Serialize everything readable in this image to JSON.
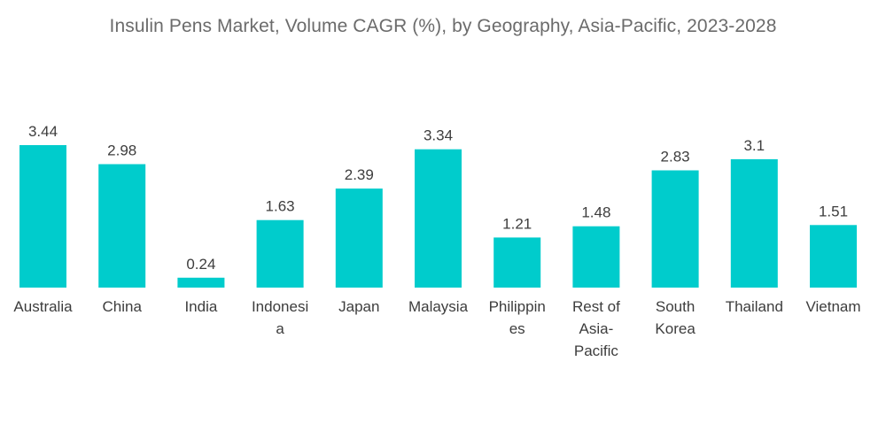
{
  "chart_data": {
    "type": "bar",
    "title": "Insulin Pens Market, Volume CAGR (%), by Geography, Asia-Pacific, 2023-2028",
    "categories": [
      "Australia",
      "China",
      "India",
      "Indonesia",
      "Japan",
      "Malaysia",
      "Philippines",
      "Rest of Asia-Pacific",
      "South Korea",
      "Thailand",
      "Vietnam"
    ],
    "category_label_lines": [
      [
        "Australia"
      ],
      [
        "China"
      ],
      [
        "India"
      ],
      [
        "Indonesi",
        "a"
      ],
      [
        "Japan"
      ],
      [
        "Malaysia"
      ],
      [
        "Philippin",
        "es"
      ],
      [
        "Rest of",
        "Asia-",
        "Pacific"
      ],
      [
        "South",
        "Korea"
      ],
      [
        "Thailand"
      ],
      [
        "Vietnam"
      ]
    ],
    "values": [
      3.44,
      2.98,
      0.24,
      1.63,
      2.39,
      3.34,
      1.21,
      1.48,
      2.83,
      3.1,
      1.51
    ],
    "value_labels": [
      "3.44",
      "2.98",
      "0.24",
      "1.63",
      "2.39",
      "3.34",
      "1.21",
      "1.48",
      "2.83",
      "3.1",
      "1.51"
    ],
    "ylim": [
      0,
      3.44
    ],
    "xlabel": "",
    "ylabel": "",
    "grid": false,
    "bar_color": "#00CCCC"
  }
}
